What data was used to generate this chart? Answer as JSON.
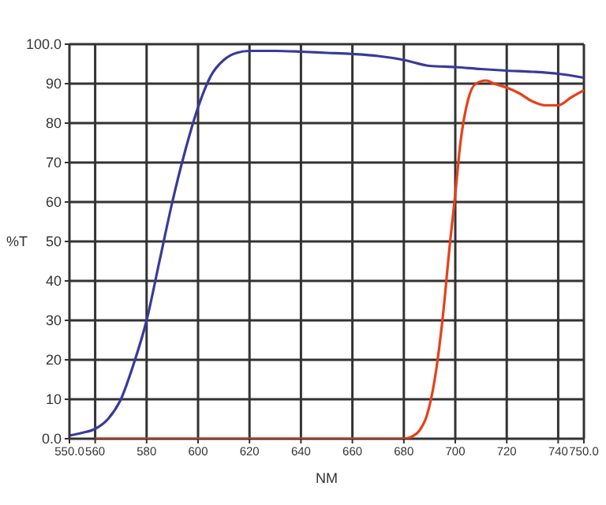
{
  "chart_data": {
    "type": "line",
    "xlabel": "NM",
    "ylabel": "%T",
    "xlim": [
      550,
      750
    ],
    "ylim": [
      0,
      100
    ],
    "xticks": [
      {
        "value": 550,
        "label": "550.0"
      },
      560,
      580,
      600,
      620,
      640,
      660,
      680,
      700,
      720,
      740,
      {
        "value": 750,
        "label": "750.0"
      }
    ],
    "yticks": [
      {
        "value": 0,
        "label": "0.0"
      },
      10,
      20,
      30,
      40,
      50,
      60,
      70,
      80,
      90,
      {
        "value": 100,
        "label": "100.0"
      }
    ],
    "grid": true,
    "marker": "none",
    "line_style": "solid",
    "series": [
      {
        "color": "#3a3a9a",
        "x": [
          550,
          555,
          560,
          565,
          570,
          575,
          580,
          585,
          590,
          595,
          600,
          605,
          610,
          615,
          620,
          630,
          640,
          650,
          660,
          670,
          680,
          690,
          700,
          710,
          720,
          730,
          740,
          750
        ],
        "values": [
          0.8,
          1.5,
          2.5,
          5,
          10,
          19,
          30,
          45,
          60,
          73,
          84,
          92,
          96,
          97.8,
          98.3,
          98.3,
          98.1,
          97.8,
          97.5,
          97,
          96,
          94.5,
          94.2,
          93.7,
          93.3,
          93,
          92.5,
          91.5
        ]
      },
      {
        "color": "#e8401a",
        "x": [
          560,
          620,
          650,
          680,
          683,
          686,
          689,
          692,
          695,
          698,
          700,
          702,
          705,
          708,
          712,
          715,
          720,
          725,
          730,
          735,
          740,
          745,
          750
        ],
        "values": [
          0,
          0,
          0,
          0,
          0.5,
          2,
          6,
          15,
          30,
          50,
          62,
          75,
          86,
          90,
          90.8,
          90,
          89,
          87.5,
          85.5,
          84.5,
          84.5,
          86.5,
          88.3
        ]
      }
    ]
  }
}
